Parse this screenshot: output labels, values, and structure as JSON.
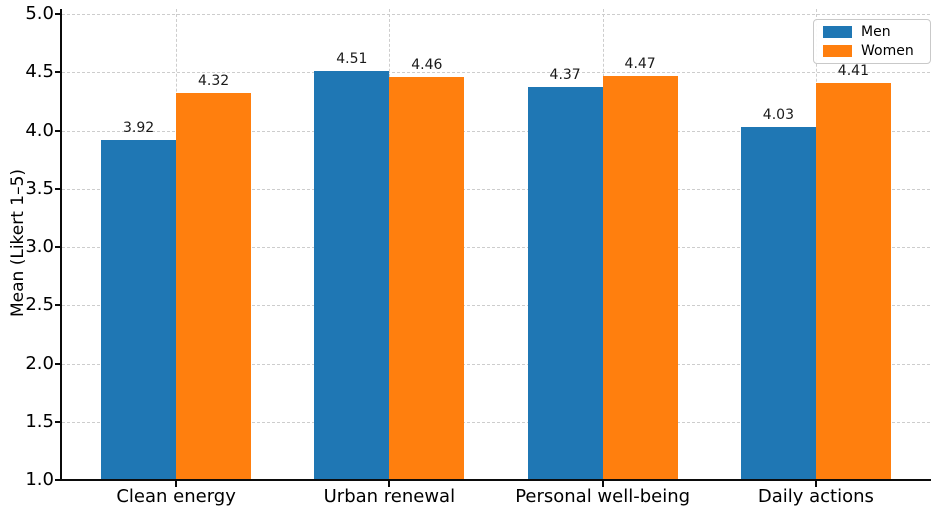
{
  "figure": {
    "background": "#ffffff",
    "text_color": "#000000",
    "axis_color": "#0b0b0b",
    "grid_color": "#cdcdcd"
  },
  "chart_data": {
    "type": "bar",
    "title": "",
    "categories": [
      "Clean energy",
      "Urban renewal",
      "Personal well-being",
      "Daily actions"
    ],
    "series": [
      {
        "name": "Men",
        "color": "#1f77b4",
        "values": [
          3.92,
          4.51,
          4.37,
          4.03
        ],
        "labels": [
          "3.92",
          "4.51",
          "4.37",
          "4.03"
        ]
      },
      {
        "name": "Women",
        "color": "#ff7f0e",
        "values": [
          4.32,
          4.46,
          4.47,
          4.41
        ],
        "labels": [
          "4.32",
          "4.46",
          "4.47",
          "4.41"
        ]
      }
    ],
    "xlabel": "",
    "ylabel": "Mean (Likert 1–5)",
    "ylim": [
      1.0,
      5.0
    ],
    "yticks": [
      1.0,
      1.5,
      2.0,
      2.5,
      3.0,
      3.5,
      4.0,
      4.5,
      5.0
    ],
    "ytick_labels": [
      "1.0",
      "1.5",
      "2.0",
      "2.5",
      "3.0",
      "3.5",
      "4.0",
      "4.5",
      "5.0"
    ],
    "grid": true,
    "grid_style": "dashed",
    "legend_position": "upper right",
    "bar_group_width": 0.7
  }
}
